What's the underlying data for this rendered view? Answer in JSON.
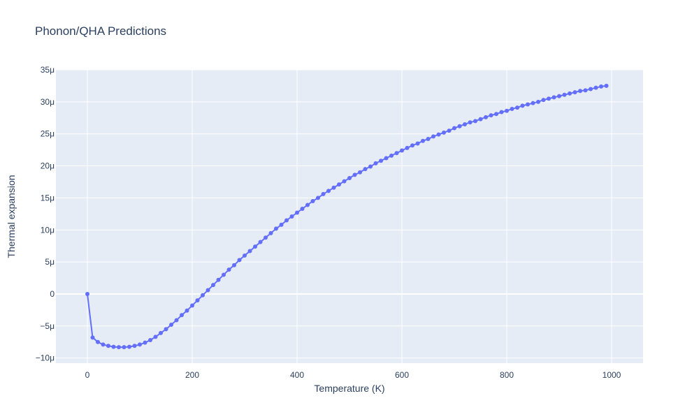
{
  "chart_data": {
    "type": "line",
    "title": "Phonon/QHA Predictions",
    "xlabel": "Temperature (K)",
    "ylabel": "Thermal expansion",
    "xlim": [
      -60,
      1060
    ],
    "ylim": [
      -1.08e-05,
      3.5e-05
    ],
    "x_ticks": [
      0,
      200,
      400,
      600,
      800,
      1000
    ],
    "x_tick_labels": [
      "0",
      "200",
      "400",
      "600",
      "800",
      "1000"
    ],
    "y_ticks": [
      -1e-05,
      -5e-06,
      0,
      5e-06,
      1e-05,
      1.5e-05,
      2e-05,
      2.5e-05,
      3e-05,
      3.5e-05
    ],
    "y_tick_labels": [
      "−10μ",
      "−5μ",
      "0",
      "5μ",
      "10μ",
      "15μ",
      "20μ",
      "25μ",
      "30μ",
      "35μ"
    ],
    "grid": true,
    "colors": {
      "line": "#636efa",
      "plot_bg": "#e5ecf6",
      "text": "#2a3f5f"
    },
    "series": [
      {
        "x": [
          0,
          10,
          20,
          30,
          40,
          50,
          60,
          70,
          80,
          90,
          100,
          110,
          120,
          130,
          140,
          150,
          160,
          170,
          180,
          190,
          200,
          210,
          220,
          230,
          240,
          250,
          260,
          270,
          280,
          290,
          300,
          310,
          320,
          330,
          340,
          350,
          360,
          370,
          380,
          390,
          400,
          410,
          420,
          430,
          440,
          450,
          460,
          470,
          480,
          490,
          500,
          510,
          520,
          530,
          540,
          550,
          560,
          570,
          580,
          590,
          600,
          610,
          620,
          630,
          640,
          650,
          660,
          670,
          680,
          690,
          700,
          710,
          720,
          730,
          740,
          750,
          760,
          770,
          780,
          790,
          800,
          810,
          820,
          830,
          840,
          850,
          860,
          870,
          880,
          890,
          900,
          910,
          920,
          930,
          940,
          950,
          960,
          970,
          980,
          990
        ],
        "y": [
          0,
          -6.8e-06,
          -7.5e-06,
          -7.9e-06,
          -8.1e-06,
          -8.25e-06,
          -8.3e-06,
          -8.3e-06,
          -8.25e-06,
          -8.1e-06,
          -7.9e-06,
          -7.6e-06,
          -7.2e-06,
          -6.7e-06,
          -6.1e-06,
          -5.5e-06,
          -4.8e-06,
          -4.1e-06,
          -3.3e-06,
          -2.6e-06,
          -1.8e-06,
          -1e-06,
          -2e-07,
          6e-07,
          1.4e-06,
          2.2e-06,
          3e-06,
          3.8e-06,
          4.5e-06,
          5.3e-06,
          6e-06,
          6.7e-06,
          7.4e-06,
          8.1e-06,
          8.8e-06,
          9.5e-06,
          1.02e-05,
          1.08e-05,
          1.15e-05,
          1.21e-05,
          1.27e-05,
          1.33e-05,
          1.39e-05,
          1.45e-05,
          1.5e-05,
          1.56e-05,
          1.61e-05,
          1.66e-05,
          1.71e-05,
          1.76e-05,
          1.81e-05,
          1.86e-05,
          1.9e-05,
          1.95e-05,
          1.99e-05,
          2.04e-05,
          2.08e-05,
          2.12e-05,
          2.16e-05,
          2.2e-05,
          2.24e-05,
          2.28e-05,
          2.32e-05,
          2.35e-05,
          2.39e-05,
          2.42e-05,
          2.46e-05,
          2.49e-05,
          2.52e-05,
          2.55e-05,
          2.59e-05,
          2.62e-05,
          2.65e-05,
          2.68e-05,
          2.7e-05,
          2.73e-05,
          2.76e-05,
          2.79e-05,
          2.81e-05,
          2.84e-05,
          2.86e-05,
          2.89e-05,
          2.91e-05,
          2.94e-05,
          2.96e-05,
          2.98e-05,
          3e-05,
          3.03e-05,
          3.05e-05,
          3.07e-05,
          3.09e-05,
          3.11e-05,
          3.13e-05,
          3.15e-05,
          3.17e-05,
          3.18e-05,
          3.2e-05,
          3.22e-05,
          3.24e-05,
          3.25e-05
        ]
      }
    ]
  }
}
